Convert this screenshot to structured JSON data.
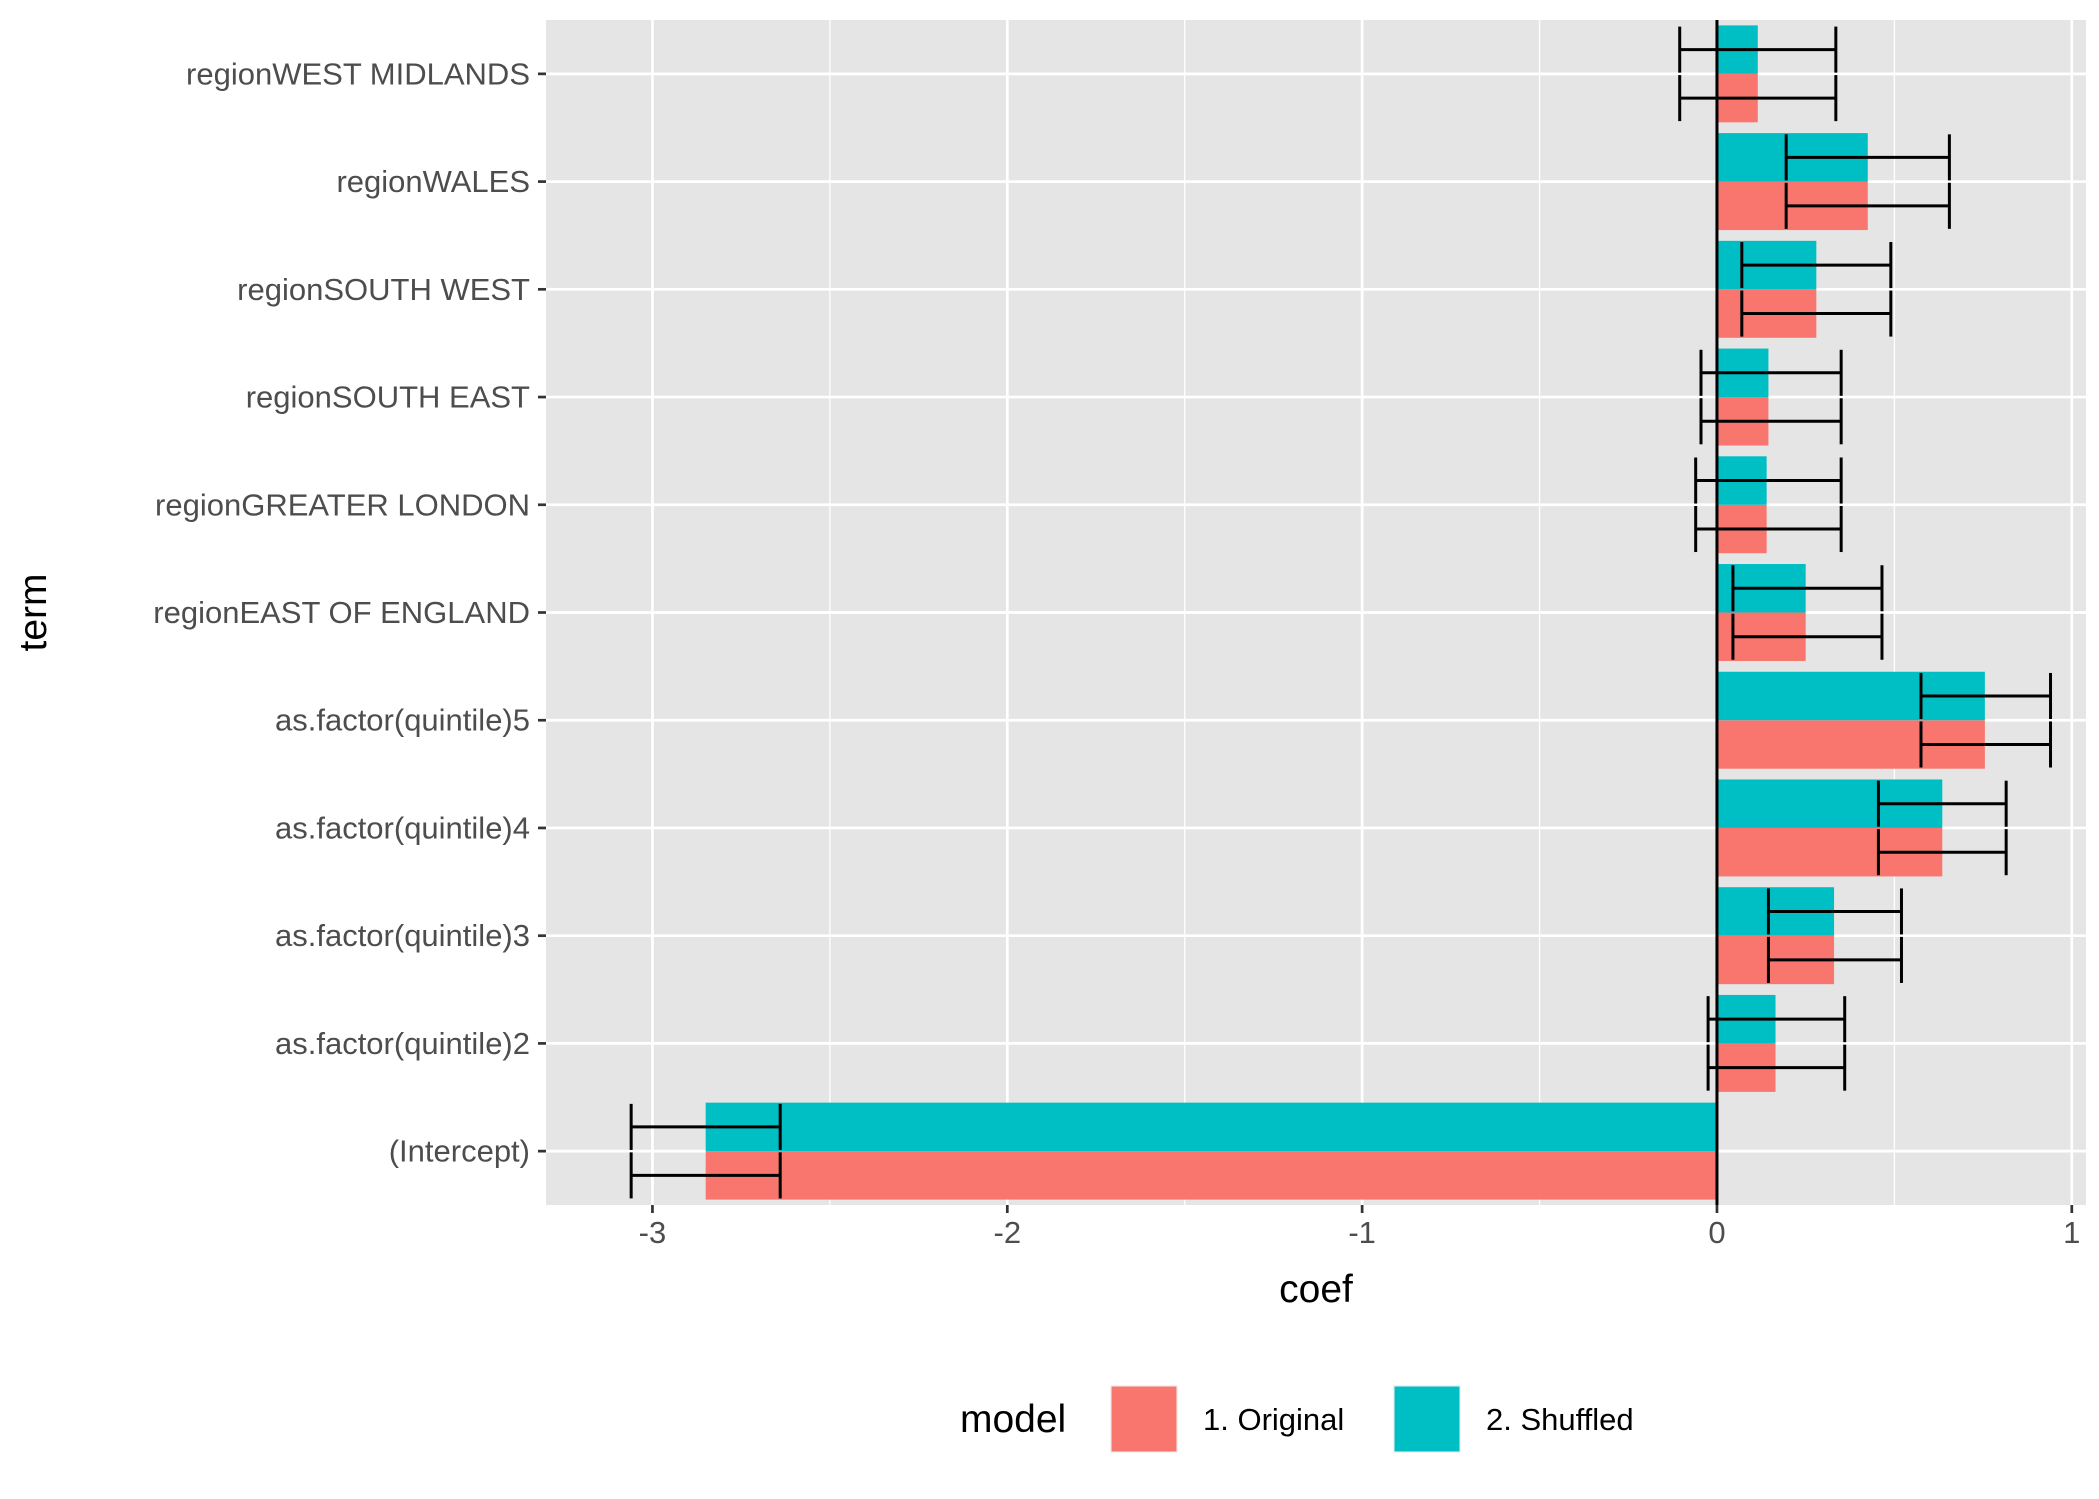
{
  "chart_data": {
    "type": "bar",
    "orientation": "horizontal",
    "xlabel": "coef",
    "ylabel": "term",
    "xlim": [
      -3.3,
      1.04
    ],
    "x_ticks": [
      -3,
      -2,
      -1,
      0,
      1
    ],
    "x_tick_labels": [
      "-3",
      "-2",
      "-1",
      "0",
      "1"
    ],
    "categories": [
      "(Intercept)",
      "as.factor(quintile)2",
      "as.factor(quintile)3",
      "as.factor(quintile)4",
      "as.factor(quintile)5",
      "regionEAST OF ENGLAND",
      "regionGREATER LONDON",
      "regionSOUTH EAST",
      "regionSOUTH WEST",
      "regionWALES",
      "regionWEST MIDLANDS"
    ],
    "series": [
      {
        "name": "1. Original",
        "color": "#F8766D",
        "values": [
          -2.85,
          0.165,
          0.33,
          0.635,
          0.755,
          0.25,
          0.14,
          0.145,
          0.28,
          0.425,
          0.115
        ],
        "lower": [
          -3.06,
          -0.025,
          0.145,
          0.455,
          0.575,
          0.045,
          -0.06,
          -0.045,
          0.07,
          0.195,
          -0.105
        ],
        "upper": [
          -2.64,
          0.36,
          0.52,
          0.815,
          0.94,
          0.465,
          0.35,
          0.35,
          0.49,
          0.655,
          0.335
        ]
      },
      {
        "name": "2. Shuffled",
        "color": "#00BFC4",
        "values": [
          -2.85,
          0.165,
          0.33,
          0.635,
          0.755,
          0.25,
          0.14,
          0.145,
          0.28,
          0.425,
          0.115
        ],
        "lower": [
          -3.06,
          -0.025,
          0.145,
          0.455,
          0.575,
          0.045,
          -0.06,
          -0.045,
          0.07,
          0.195,
          -0.105
        ],
        "upper": [
          -2.64,
          0.36,
          0.52,
          0.815,
          0.94,
          0.465,
          0.35,
          0.35,
          0.49,
          0.655,
          0.335
        ]
      }
    ],
    "reference_line_x": 0,
    "grid": true,
    "panel_background": "#E5E5E5",
    "grid_color": "#FFFFFF",
    "legend": {
      "position": "bottom",
      "title": "model",
      "entries": [
        "1. Original",
        "2. Shuffled"
      ]
    }
  }
}
